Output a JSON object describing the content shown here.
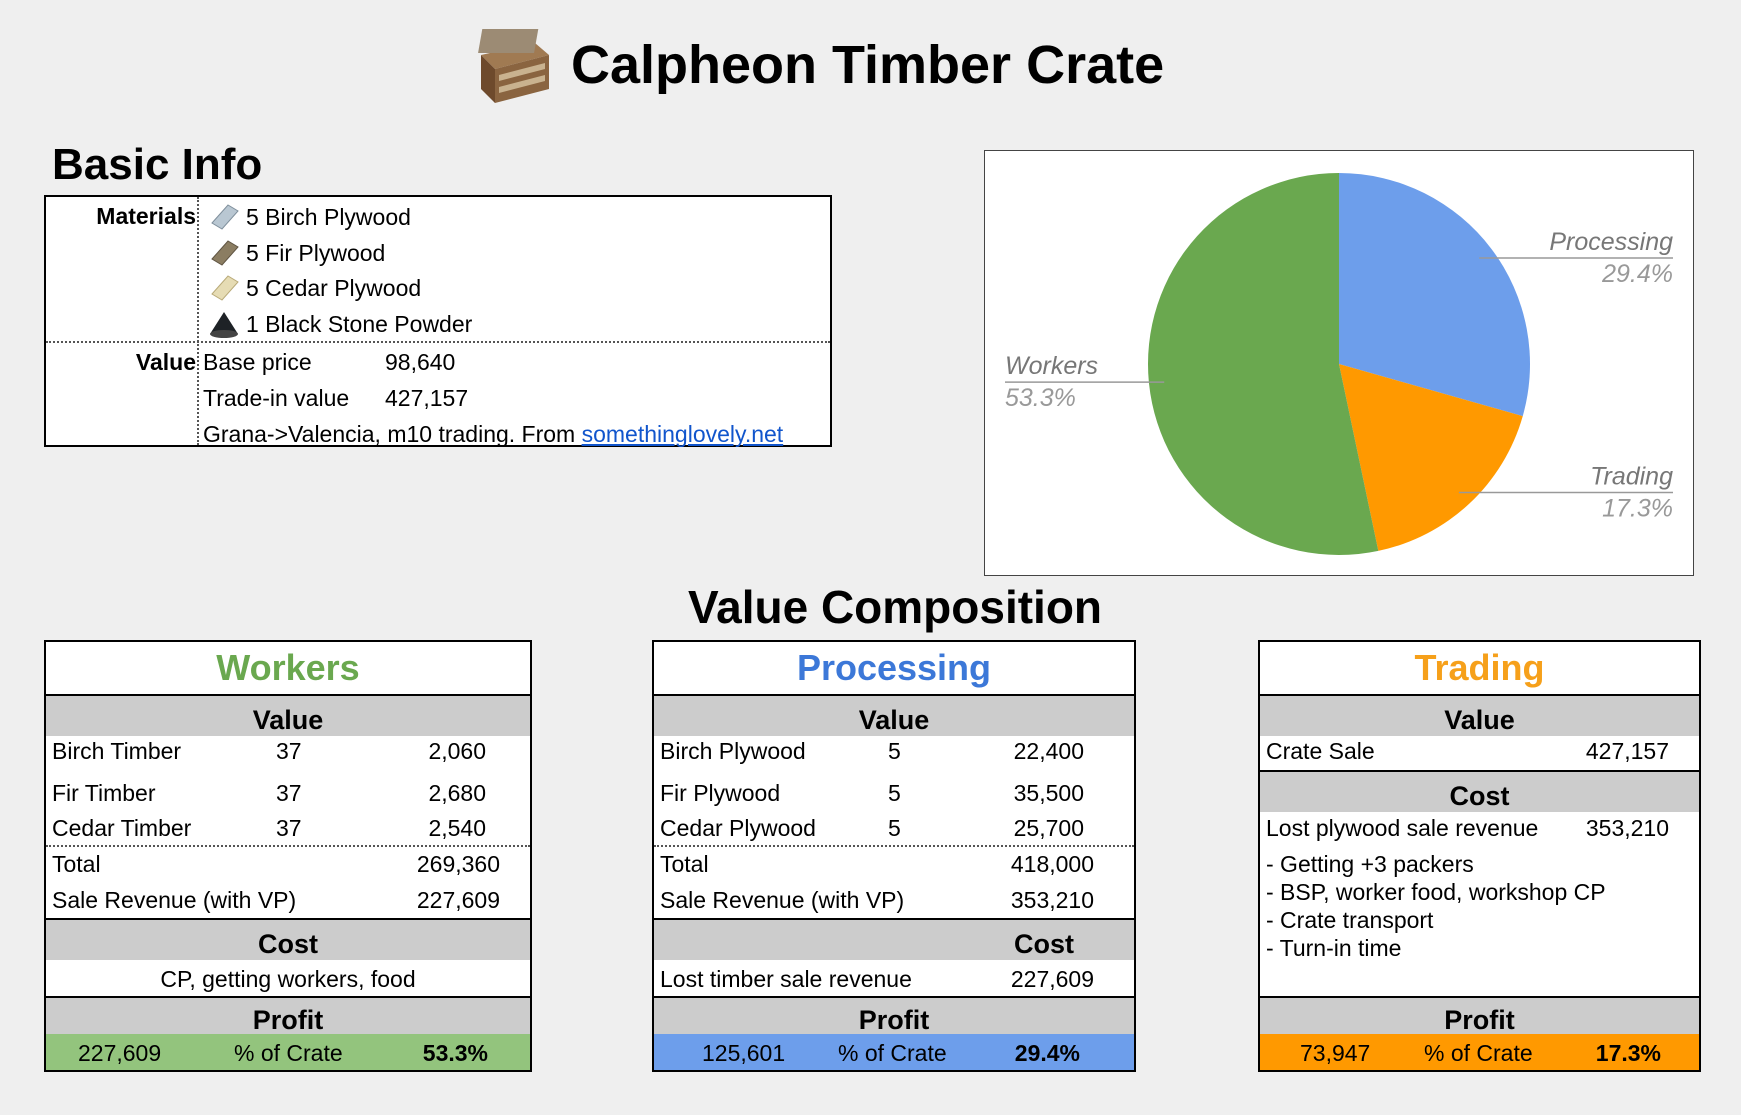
{
  "title": "Calpheon Timber Crate",
  "basic_info": {
    "heading": "Basic Info",
    "materials_label": "Materials",
    "materials": [
      {
        "icon": "birch-plywood-icon",
        "text": "5 Birch Plywood"
      },
      {
        "icon": "fir-plywood-icon",
        "text": "5 Fir Plywood"
      },
      {
        "icon": "cedar-plywood-icon",
        "text": "5 Cedar Plywood"
      },
      {
        "icon": "black-stone-powder-icon",
        "text": "1 Black Stone Powder"
      }
    ],
    "value_label": "Value",
    "base_price_label": "Base price",
    "base_price": "98,640",
    "trade_in_label": "Trade-in value",
    "trade_in": "427,157",
    "note_prefix": "Grana->Valencia, m10 trading. From ",
    "note_link": "somethinglovely.net"
  },
  "chart_data": {
    "type": "pie",
    "slices": [
      {
        "label": "Processing",
        "value": 29.4,
        "value_label": "29.4%",
        "color": "#6d9eeb"
      },
      {
        "label": "Trading",
        "value": 17.3,
        "value_label": "17.3%",
        "color": "#ff9900"
      },
      {
        "label": "Workers",
        "value": 53.3,
        "value_label": "53.3%",
        "color": "#6aa84f"
      }
    ],
    "start_angle_deg": 0,
    "direction": "clockwise",
    "label_style": "outside-callout-italic"
  },
  "value_composition": {
    "heading": "Value Composition",
    "workers": {
      "title": "Workers",
      "title_color": "#6aa84f",
      "value_heading": "Value",
      "rows": [
        {
          "name": "Birch Timber",
          "qty": "37",
          "price": "2,060"
        },
        {
          "name": "Fir Timber",
          "qty": "37",
          "price": "2,680"
        },
        {
          "name": "Cedar Timber",
          "qty": "37",
          "price": "2,540"
        }
      ],
      "total_label": "Total",
      "total": "269,360",
      "sale_label": "Sale Revenue (with VP)",
      "sale": "227,609",
      "cost_heading": "Cost",
      "cost_text": "CP, getting workers, food",
      "profit_heading": "Profit",
      "profit": "227,609",
      "pct_label": "% of Crate",
      "pct": "53.3%",
      "profit_color": "#93c47d"
    },
    "processing": {
      "title": "Processing",
      "title_color": "#3c78d8",
      "value_heading": "Value",
      "rows": [
        {
          "name": "Birch Plywood",
          "qty": "5",
          "price": "22,400"
        },
        {
          "name": "Fir Plywood",
          "qty": "5",
          "price": "35,500"
        },
        {
          "name": "Cedar Plywood",
          "qty": "5",
          "price": "25,700"
        }
      ],
      "total_label": "Total",
      "total": "418,000",
      "sale_label": "Sale Revenue (with VP)",
      "sale": "353,210",
      "cost_heading": "Cost",
      "cost_label": "Lost timber sale revenue",
      "cost_value": "227,609",
      "profit_heading": "Profit",
      "profit": "125,601",
      "pct_label": "% of Crate",
      "pct": "29.4%",
      "profit_color": "#6d9eeb"
    },
    "trading": {
      "title": "Trading",
      "title_color": "#f6a01a",
      "value_heading": "Value",
      "sale_label": "Crate Sale",
      "sale": "427,157",
      "cost_heading": "Cost",
      "cost_label": "Lost plywood sale revenue",
      "cost_value": "353,210",
      "notes": [
        "- Getting +3 packers",
        "- BSP, worker food, workshop CP",
        "- Crate transport",
        "- Turn-in time"
      ],
      "profit_heading": "Profit",
      "profit": "73,947",
      "pct_label": "% of Crate",
      "pct": "17.3%",
      "profit_color": "#ff9900"
    }
  }
}
